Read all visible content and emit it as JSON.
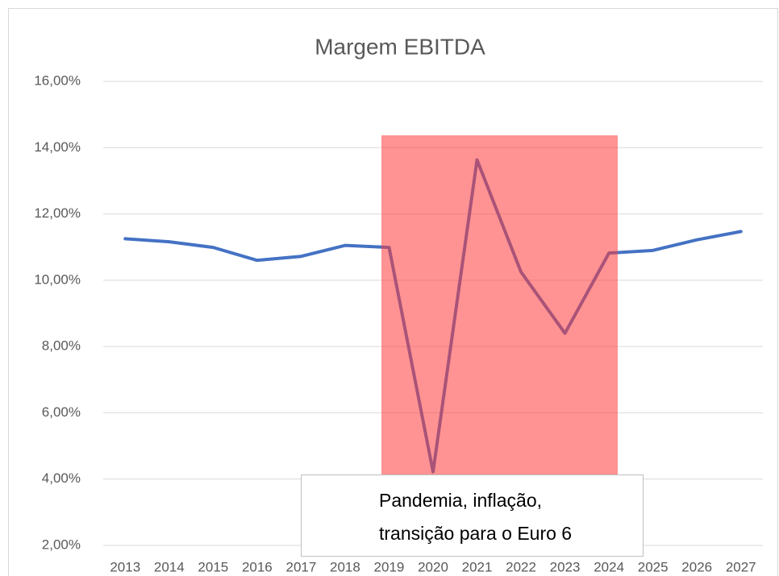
{
  "chart_data": {
    "type": "line",
    "title": "Margem EBITDA",
    "categories": [
      "2013",
      "2014",
      "2015",
      "2016",
      "2017",
      "2018",
      "2019",
      "2020",
      "2021",
      "2022",
      "2023",
      "2024",
      "2025",
      "2026",
      "2027"
    ],
    "series": [
      {
        "name": "Margem EBITDA",
        "color": "#4472c4",
        "values": [
          11.25,
          11.16,
          10.99,
          10.6,
          10.72,
          11.05,
          10.99,
          4.22,
          13.63,
          10.25,
          8.4,
          10.82,
          10.9,
          11.22,
          11.47
        ]
      }
    ],
    "ylim": [
      2,
      16
    ],
    "yticks": [
      {
        "value": 2,
        "label": "2,00%"
      },
      {
        "value": 4,
        "label": "4,00%"
      },
      {
        "value": 6,
        "label": "6,00%"
      },
      {
        "value": 8,
        "label": "8,00%"
      },
      {
        "value": 10,
        "label": "10,00%"
      },
      {
        "value": 12,
        "label": "12,00%"
      },
      {
        "value": 14,
        "label": "14,00%"
      },
      {
        "value": 16,
        "label": "16,00%"
      }
    ],
    "grid": true,
    "annotation": [
      "Pandemia, inflação,",
      "transição para o Euro 6"
    ]
  }
}
